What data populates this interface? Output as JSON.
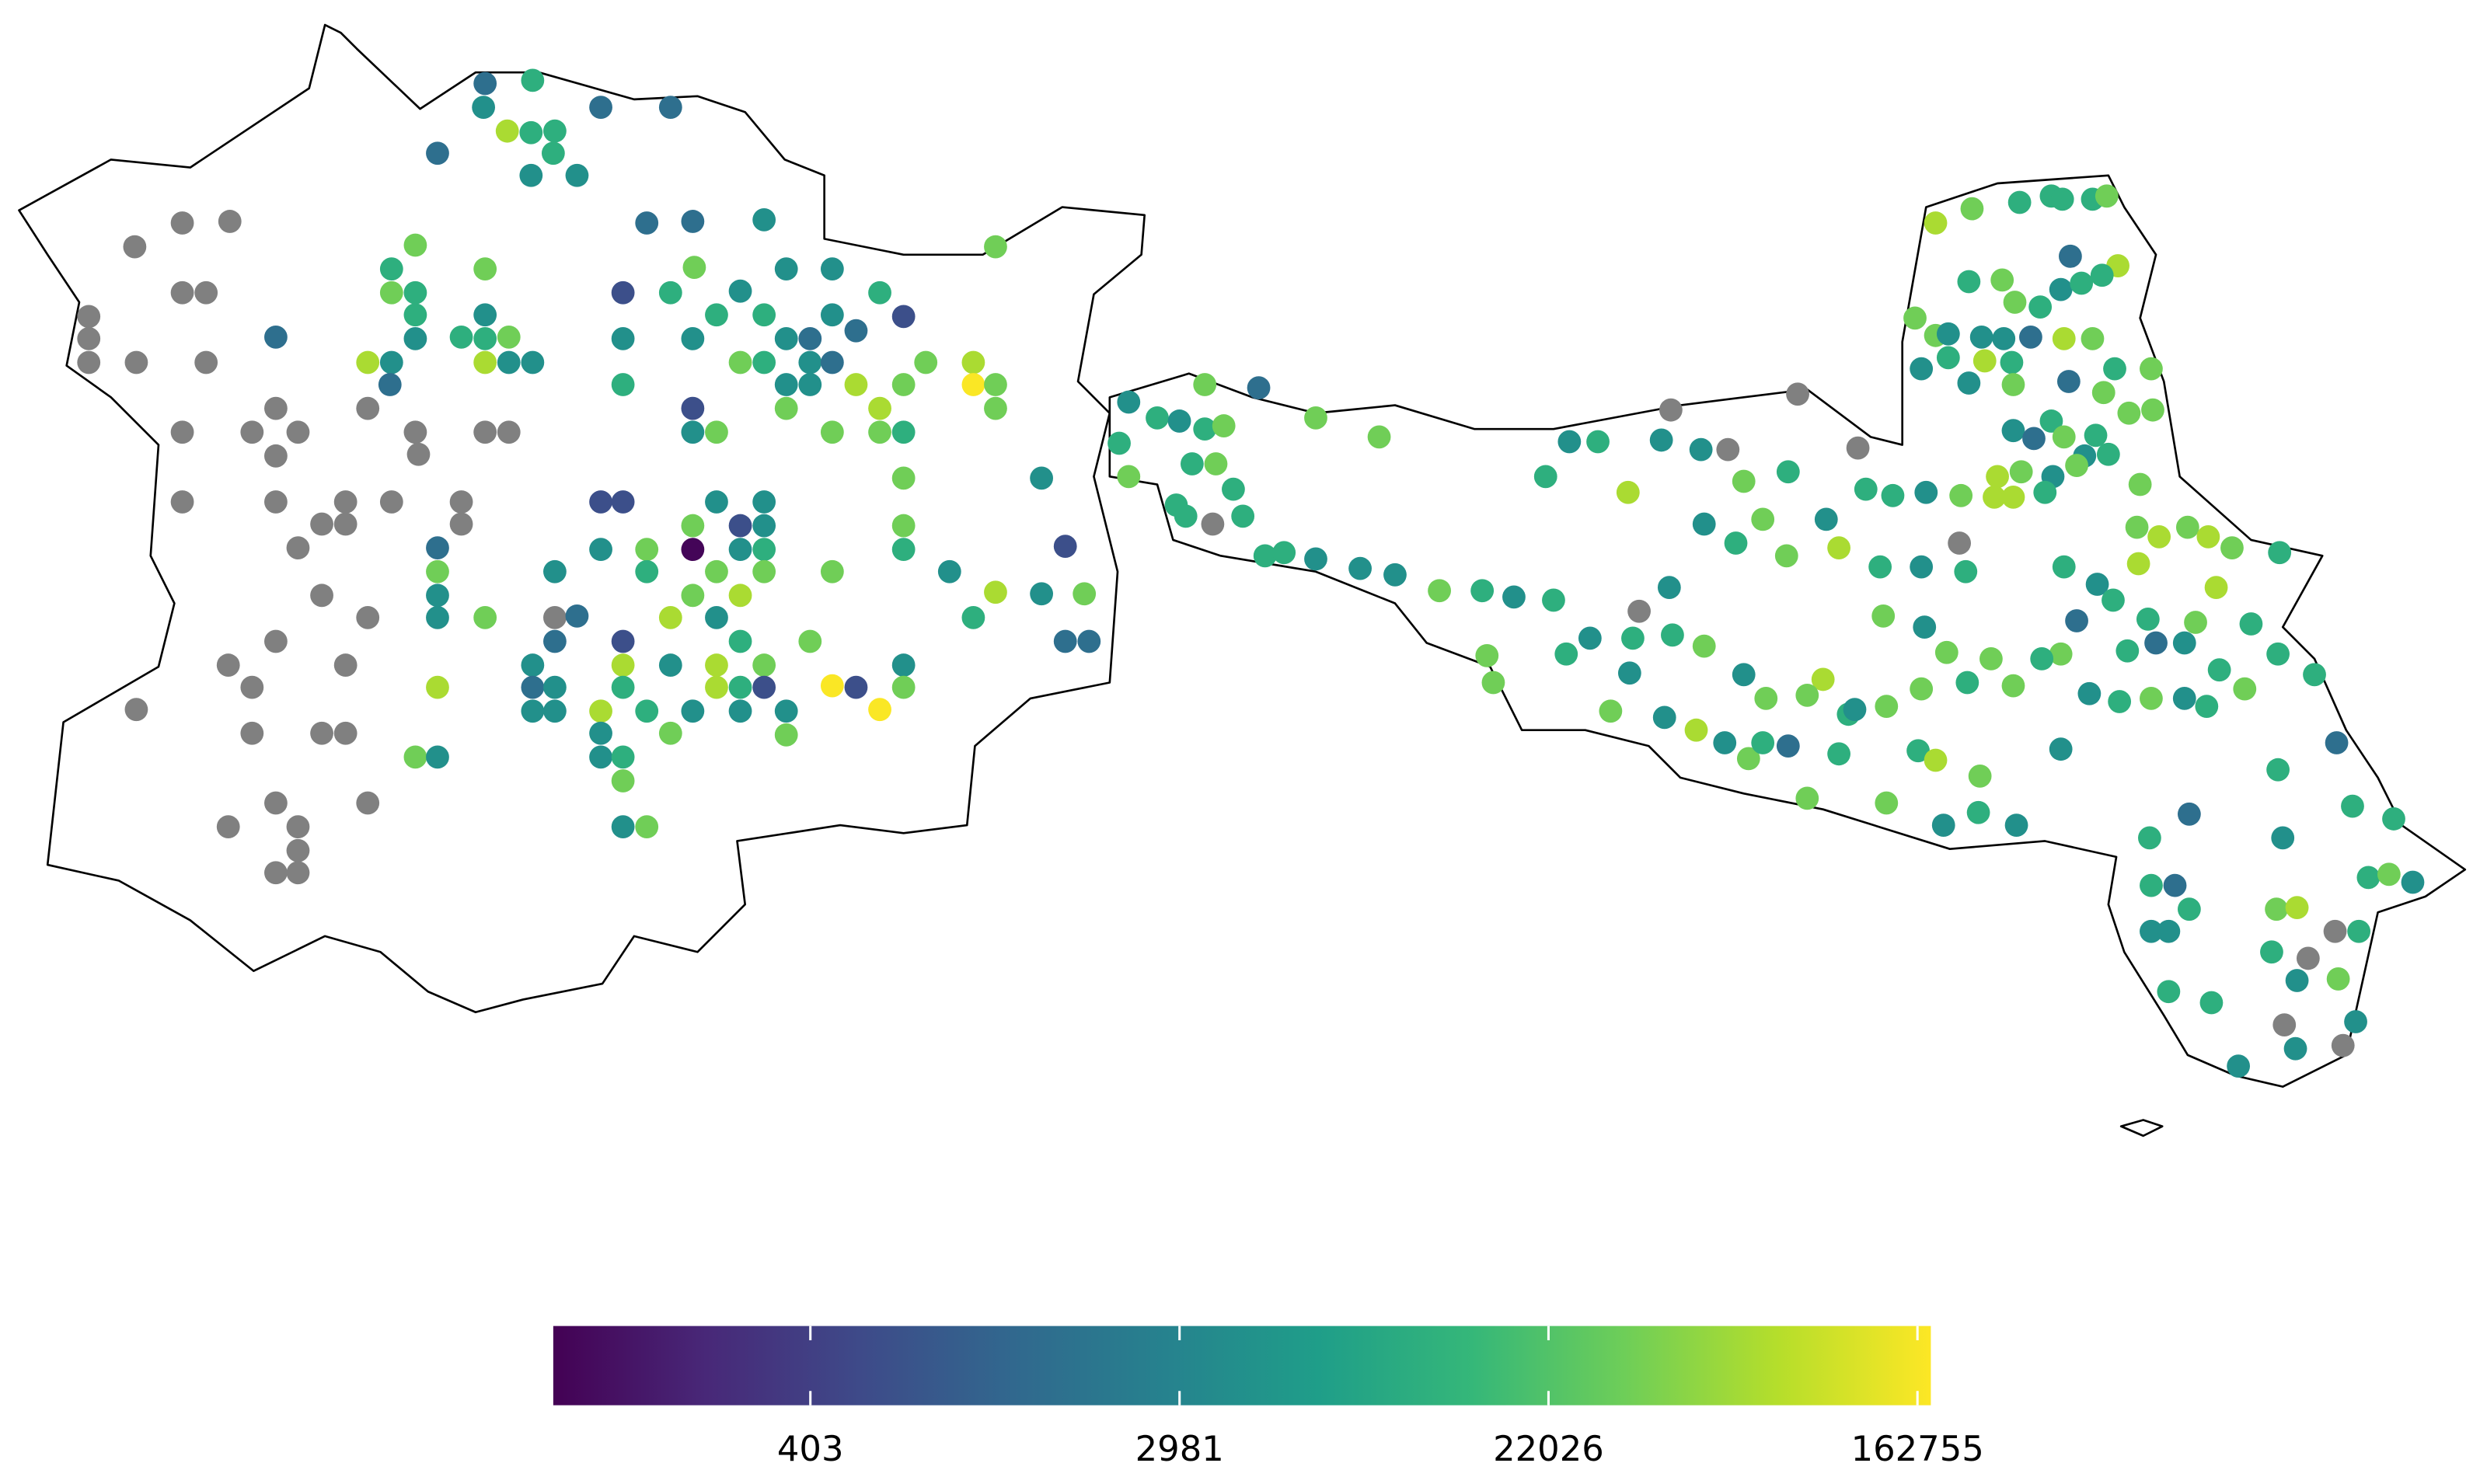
{
  "chart_data": {
    "type": "map",
    "colorbar": {
      "scale": "log",
      "colormap": "viridis",
      "lim": [
        100,
        175000
      ],
      "ticks": [
        403,
        2981,
        22026,
        162755
      ]
    },
    "na_color": "#808080",
    "points": {
      "values": [
        1500,
        11000,
        4200,
        1500,
        1500,
        67000,
        11000,
        11000,
        1500,
        11000,
        4200,
        4200,
        null,
        null,
        null,
        1500,
        1500,
        4200,
        34000,
        34000,
        11000,
        34000,
        34000,
        4200,
        4200,
        4200,
        null,
        null,
        34000,
        11000,
        600,
        11000,
        11000,
        null,
        11000,
        4200,
        11000,
        11000,
        4200,
        600,
        null,
        1500,
        4200,
        11000,
        11000,
        34000,
        4200,
        4200,
        4200,
        1500,
        1500,
        null,
        null,
        null,
        67000,
        4200,
        67000,
        4200,
        4200,
        34000,
        11000,
        4200,
        1500,
        34000,
        67000,
        1500,
        11000,
        4200,
        4200,
        67000,
        34000,
        170000,
        34000,
        null,
        null,
        600,
        34000,
        67000,
        34000,
        null,
        null,
        null,
        null,
        null,
        null,
        4200,
        34000,
        34000,
        34000,
        11000,
        null,
        null,
        34000,
        4200,
        null,
        null,
        null,
        null,
        null,
        600,
        600,
        4200,
        4200,
        null,
        null,
        null,
        34000,
        600,
        4200,
        34000,
        null,
        1500,
        4200,
        34000,
        110,
        4200,
        11000,
        11000,
        600,
        34000,
        4200,
        11000,
        34000,
        34000,
        34000,
        4200,
        null,
        4200,
        34000,
        67000,
        67000,
        4200,
        34000,
        null,
        4200,
        34000,
        null,
        1500,
        67000,
        4200,
        11000,
        null,
        1500,
        600,
        11000,
        34000,
        1500,
        1500,
        null,
        null,
        4200,
        67000,
        4200,
        67000,
        34000,
        4200,
        null,
        67000,
        1500,
        4200,
        11000,
        67000,
        11000,
        600,
        170000,
        600,
        34000,
        null,
        67000,
        11000,
        4200,
        4200,
        4200,
        170000,
        4200,
        4200,
        null,
        null,
        null,
        4200,
        34000,
        34000,
        34000,
        4200,
        4200,
        11000,
        34000,
        null,
        null,
        null,
        null,
        4200,
        34000,
        null,
        null,
        null,
        67000,
        34000,
        11000,
        11000,
        11000,
        11000,
        34000,
        1500,
        67000,
        11000,
        34000,
        4200,
        11000,
        11000,
        34000,
        11000,
        34000,
        34000,
        4200,
        4200,
        4200,
        1500,
        67000,
        34000,
        4200,
        11000,
        67000,
        11000,
        11000,
        34000,
        4200,
        34000,
        1500,
        34000,
        34000,
        34000,
        11000,
        4200,
        1500,
        34000,
        11000,
        4200,
        11000,
        67000,
        34000,
        4200,
        34000,
        34000,
        67000,
        67000,
        11000,
        34000,
        67000,
        34000,
        67000,
        34000,
        11000,
        11000,
        4200,
        11000,
        67000,
        67000,
        11000,
        34000,
        11000,
        1500,
        11000,
        1500,
        4200,
        11000,
        11000,
        11000,
        34000,
        4200,
        11000,
        34000,
        4200,
        11000,
        34000,
        1500,
        11000,
        11000,
        11000,
        1500,
        11000,
        4200,
        11000,
        1500,
        11000,
        34000,
        67000,
        11000,
        34000,
        4200,
        4200,
        4200,
        11000,
        null,
        null,
        11000,
        34000,
        11000,
        11000,
        4200,
        null,
        4200,
        4200,
        null,
        4200,
        null,
        null,
        null,
        null,
        null,
        null,
        null,
        4200,
        11000,
        34000,
        11000,
        4200,
        34000,
        11000,
        34000,
        1500,
        34000,
        34000,
        11000,
        34000,
        11000,
        11000,
        11000,
        11000,
        11000,
        11000,
        4200,
        4200,
        4200,
        34000,
        11000,
        4200,
        11000,
        4200,
        34000,
        34000,
        11000,
        11000,
        11000,
        34000,
        4200,
        34000,
        4200,
        67000,
        4200,
        34000,
        11000,
        1500,
        34000,
        11000,
        34000,
        11000,
        11000,
        67000,
        34000,
        4200,
        4200,
        4200,
        11000,
        11000,
        4200,
        11000,
        67000,
        4200,
        4200,
        34000,
        11000,
        34000,
        4200,
        11000,
        11000,
        4200,
        34000,
        34000,
        67000,
        11000,
        4200,
        11000,
        34000,
        4200,
        34000,
        34000,
        11000,
        67000,
        34000,
        34000,
        11000,
        34000,
        4200,
        34000,
        34000,
        4200,
        4200,
        4200,
        11000
      ]
    }
  }
}
